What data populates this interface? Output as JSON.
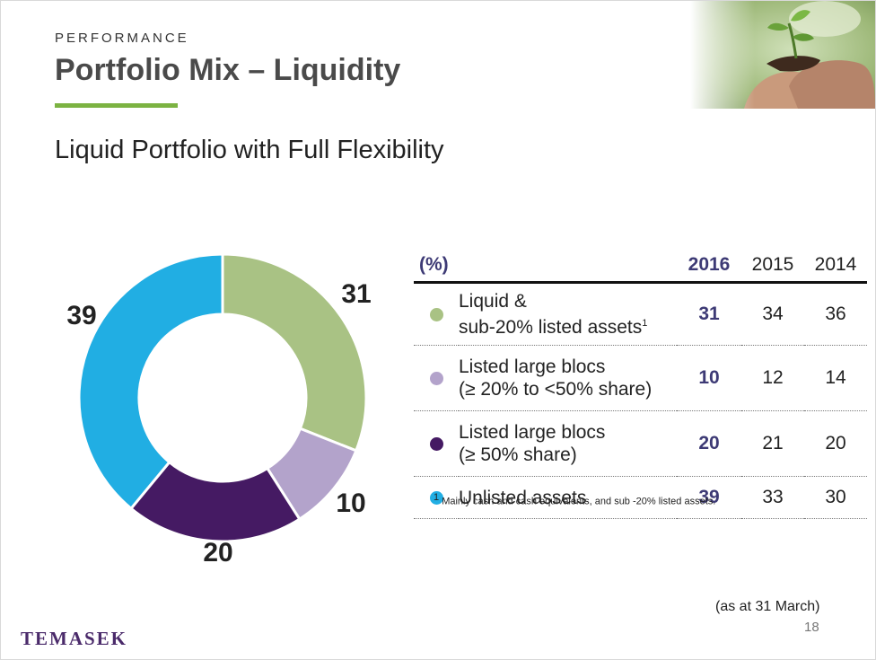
{
  "header": {
    "kicker": "PERFORMANCE",
    "title": "Portfolio Mix – Liquidity",
    "subtitle": "Liquid Portfolio with Full Flexibility"
  },
  "chart_data": {
    "type": "pie",
    "variant": "donut",
    "series": [
      {
        "value": 31,
        "color": "#a9c284",
        "label": "31"
      },
      {
        "value": 10,
        "color": "#b3a3cb",
        "label": "10"
      },
      {
        "value": 20,
        "color": "#451a63",
        "label": "20"
      },
      {
        "value": 39,
        "color": "#21aee3",
        "label": "39"
      }
    ]
  },
  "table": {
    "unit_label": "(%)",
    "years": [
      "2016",
      "2015",
      "2014"
    ],
    "rows": [
      {
        "line1": "Liquid &",
        "line2": "sub-20% listed assets",
        "sup": "1",
        "color": "#a9c284",
        "values": [
          "31",
          "34",
          "36"
        ]
      },
      {
        "line1": "Listed large blocs",
        "line2": "(≥ 20% to <50% share)",
        "sup": "",
        "color": "#b3a3cb",
        "values": [
          "10",
          "12",
          "14"
        ]
      },
      {
        "line1": "Listed large blocs",
        "line2": "(≥ 50% share)",
        "sup": "",
        "color": "#451a63",
        "values": [
          "20",
          "21",
          "20"
        ]
      },
      {
        "line1": "Unlisted assets",
        "line2": "",
        "sup": "",
        "color": "#21aee3",
        "values": [
          "39",
          "33",
          "30"
        ]
      }
    ]
  },
  "footnote": {
    "marker": "1",
    "text": "Mainly cash and cash equivalents, and sub -20% listed assets."
  },
  "as_at": "(as at 31 March)",
  "page_number": "18",
  "logo": "TEMASEK",
  "colors": {
    "accent_rule": "#7cb342",
    "highlight_text": "#3d3a75",
    "logo": "#4a2a6a"
  },
  "icons": {
    "header_photo": "hands-holding-seedling-photo"
  }
}
